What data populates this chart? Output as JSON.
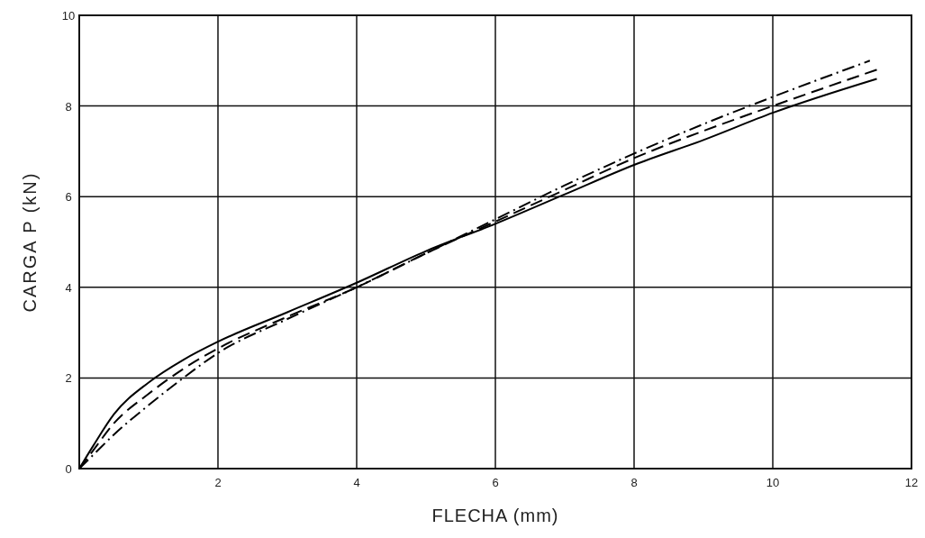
{
  "chart_data": {
    "type": "line",
    "xlabel": "FLECHA (mm)",
    "ylabel": "CARGA P (kN)",
    "xlim": [
      0,
      12
    ],
    "ylim": [
      0,
      10
    ],
    "xticks": [
      {
        "value": 0,
        "label": null
      },
      2,
      4,
      6,
      8,
      10,
      12
    ],
    "yticks": [
      0,
      2,
      4,
      6,
      8,
      10
    ],
    "grid": true,
    "series": [
      {
        "color": "#000000",
        "line_style": "solid",
        "x": [
          0,
          0.2,
          0.5,
          1,
          1.5,
          2,
          3,
          4,
          5,
          6,
          7,
          8,
          9,
          10,
          11.5
        ],
        "values": [
          0,
          0.5,
          1.2,
          1.9,
          2.4,
          2.8,
          3.45,
          4.1,
          4.8,
          5.4,
          6.05,
          6.7,
          7.25,
          7.85,
          8.6
        ]
      },
      {
        "color": "#000000",
        "line_style": "dashed",
        "x": [
          0,
          0.2,
          0.5,
          1,
          1.5,
          2,
          3,
          4,
          5,
          6,
          7,
          8,
          9,
          10,
          11.5
        ],
        "values": [
          0,
          0.4,
          1,
          1.65,
          2.2,
          2.65,
          3.35,
          4,
          4.75,
          5.45,
          6.15,
          6.85,
          7.45,
          8,
          8.8
        ]
      },
      {
        "color": "#000000",
        "line_style": "dashdot",
        "x": [
          0,
          0.2,
          0.5,
          1,
          1.5,
          2,
          3,
          4,
          5,
          6,
          7,
          8,
          9,
          10,
          11.4
        ],
        "values": [
          0,
          0.3,
          0.75,
          1.4,
          2,
          2.55,
          3.3,
          4,
          4.75,
          5.5,
          6.25,
          6.95,
          7.6,
          8.2,
          9
        ]
      }
    ]
  }
}
